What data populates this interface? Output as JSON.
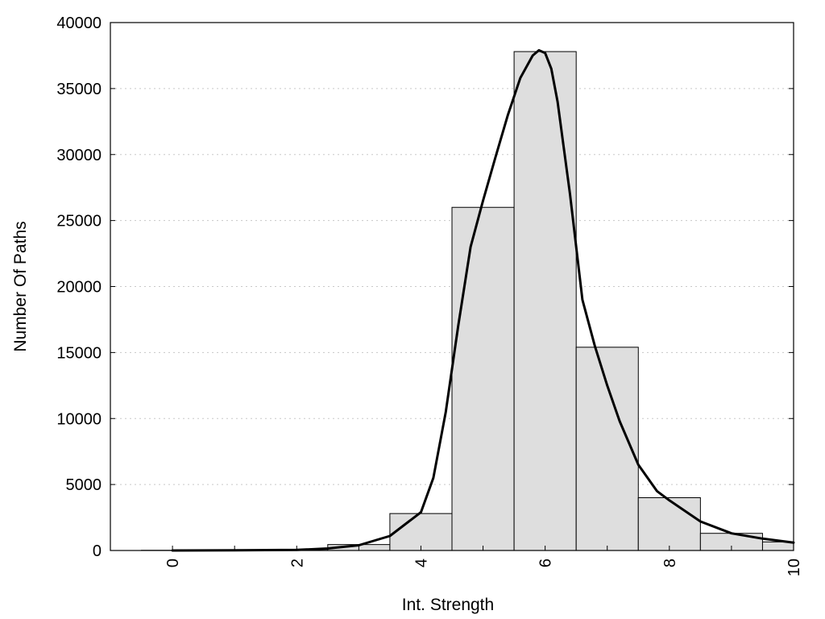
{
  "chart_data": {
    "type": "bar",
    "title": "",
    "xlabel": "Int. Strength",
    "ylabel": "Number Of Paths",
    "xlim": [
      -1,
      10
    ],
    "ylim": [
      0,
      40000
    ],
    "x_ticks": [
      0,
      2,
      4,
      6,
      8,
      10
    ],
    "y_ticks": [
      0,
      5000,
      10000,
      15000,
      20000,
      25000,
      30000,
      35000,
      40000
    ],
    "grid": "horizontal dotted",
    "bar_width": 1,
    "bar_color": "#dedede",
    "bars": {
      "x": [
        0,
        1,
        2,
        3,
        4,
        5,
        6,
        7,
        8,
        9,
        10
      ],
      "values": [
        15,
        40,
        80,
        450,
        2800,
        26000,
        37800,
        15400,
        4000,
        1300,
        650
      ]
    },
    "curve": {
      "x": [
        0,
        1,
        2,
        2.5,
        3,
        3.5,
        4,
        4.2,
        4.4,
        4.6,
        4.8,
        5.0,
        5.2,
        5.4,
        5.6,
        5.8,
        5.9,
        6.0,
        6.1,
        6.2,
        6.4,
        6.6,
        6.8,
        7.0,
        7.2,
        7.5,
        7.8,
        8.0,
        8.5,
        9.0,
        9.5,
        10
      ],
      "y": [
        0,
        10,
        40,
        150,
        400,
        1100,
        2900,
        5500,
        10500,
        17000,
        23000,
        26500,
        29800,
        33000,
        35800,
        37500,
        37900,
        37700,
        36500,
        34000,
        27000,
        19000,
        15500,
        12500,
        9800,
        6500,
        4500,
        3800,
        2200,
        1300,
        900,
        600
      ]
    }
  }
}
